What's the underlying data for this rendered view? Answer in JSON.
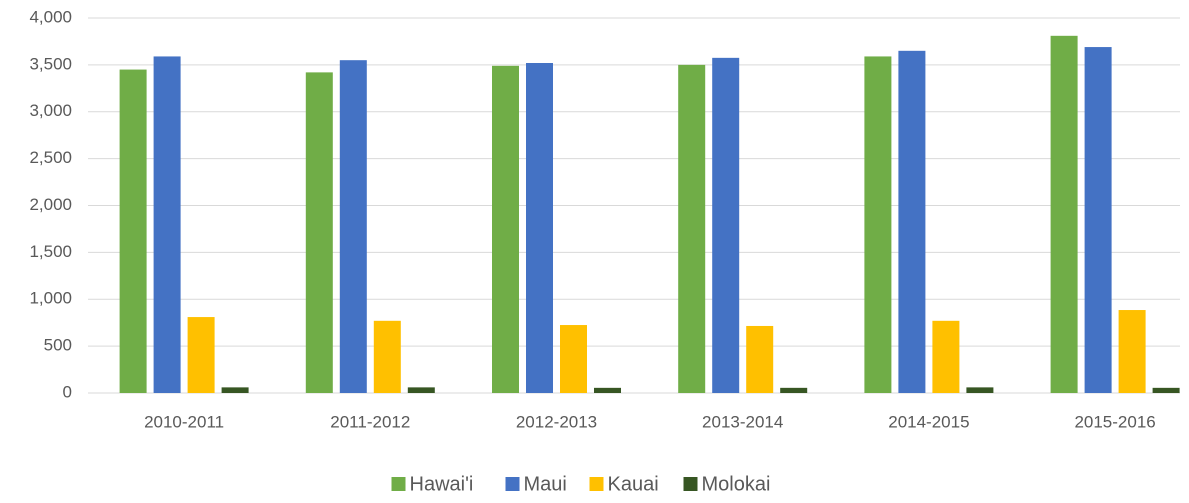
{
  "chart_data": {
    "type": "bar",
    "categories": [
      "2010-2011",
      "2011-2012",
      "2012-2013",
      "2013-2014",
      "2014-2015",
      "2015-2016"
    ],
    "series": [
      {
        "name": "Hawai'i",
        "color": "#70ad47",
        "values": [
          3450,
          3420,
          3490,
          3500,
          3590,
          3810
        ]
      },
      {
        "name": "Maui",
        "color": "#4472c4",
        "values": [
          3590,
          3550,
          3520,
          3575,
          3650,
          3690
        ]
      },
      {
        "name": "Kauai",
        "color": "#ffc000",
        "values": [
          810,
          770,
          725,
          715,
          770,
          885
        ]
      },
      {
        "name": "Molokai",
        "color": "#375623",
        "values": [
          60,
          60,
          55,
          55,
          60,
          55
        ]
      }
    ],
    "ylim": [
      0,
      4000
    ],
    "yticks": [
      0,
      500,
      {
        "value": 1000,
        "label": "1,000"
      },
      {
        "value": 1500,
        "label": "1,500"
      },
      {
        "value": 2000,
        "label": "2,000"
      },
      {
        "value": 2500,
        "label": "2,500"
      },
      {
        "value": 3000,
        "label": "3,000"
      },
      {
        "value": 3500,
        "label": "3,500"
      },
      {
        "value": 4000,
        "label": "4,000"
      }
    ],
    "grid": true,
    "legend": "bottom"
  }
}
